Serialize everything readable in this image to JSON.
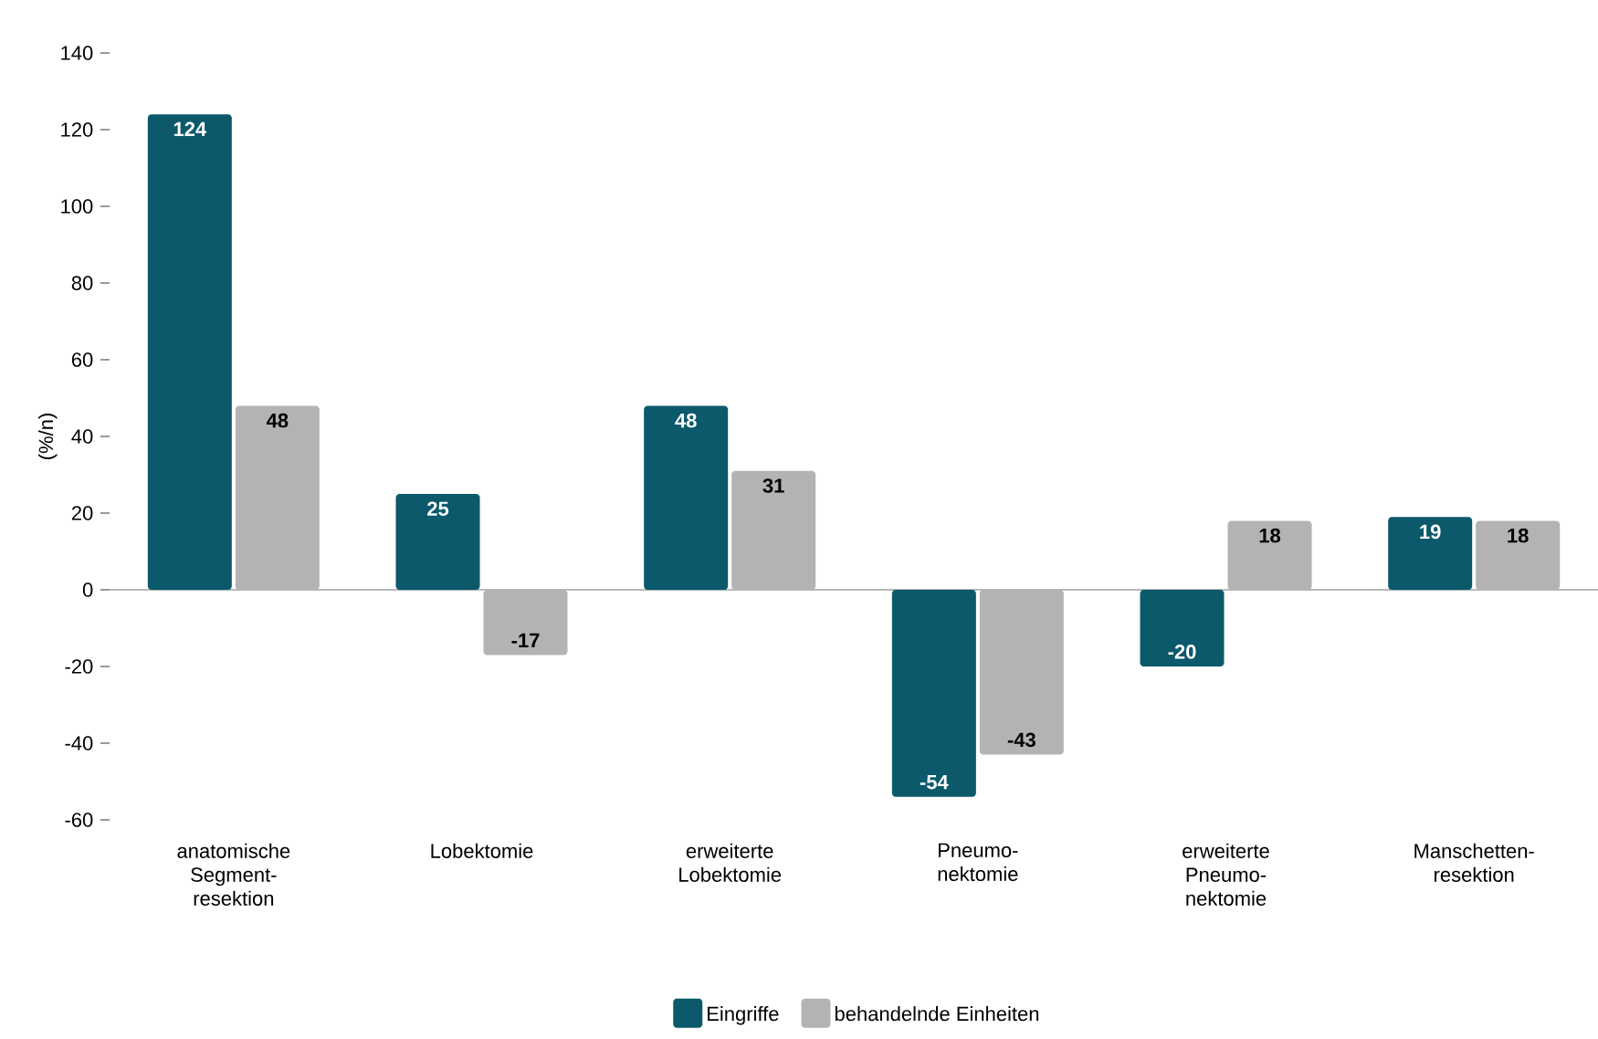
{
  "chart_data": {
    "type": "bar",
    "ylabel": "(%/n)",
    "categories": [
      "anatomische Segment- resektion",
      "Lobektomie",
      "erweiterte Lobektomie",
      "Pneumo- nektomie",
      "erweiterte Pneumo- nektomie",
      "Manschetten- resektion"
    ],
    "series": [
      {
        "name": "Eingriffe",
        "color": "#0b596b",
        "values": [
          124,
          25,
          48,
          -54,
          -20,
          19
        ]
      },
      {
        "name": "behandelnde Einheiten",
        "color": "#b3b3b3",
        "values": [
          48,
          -17,
          31,
          -43,
          18,
          18
        ]
      }
    ],
    "ylim": [
      -60,
      140
    ],
    "yticks": [
      -60,
      -40,
      -20,
      0,
      20,
      40,
      60,
      80,
      100,
      120,
      140
    ],
    "data_labels": true,
    "legend": "bottom"
  }
}
